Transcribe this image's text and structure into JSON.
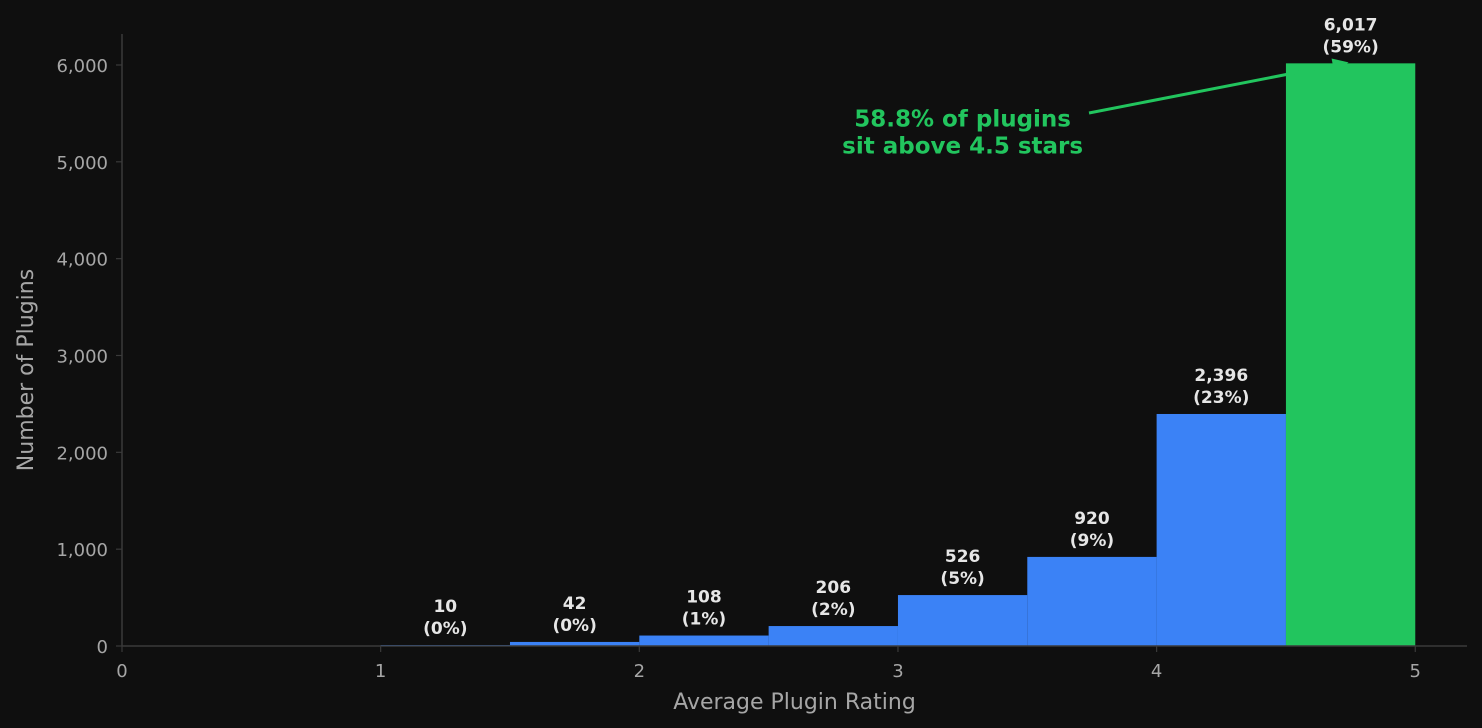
{
  "chart_data": {
    "type": "bar",
    "xlabel": "Average Plugin Rating",
    "ylabel": "Number of Plugins",
    "xlim": [
      0,
      5.2
    ],
    "ylim": [
      0,
      6320
    ],
    "xticks": [
      0,
      1,
      2,
      3,
      4,
      5
    ],
    "xtick_labels": [
      "0",
      "1",
      "2",
      "3",
      "4",
      "5"
    ],
    "yticks": [
      0,
      1000,
      2000,
      3000,
      4000,
      5000,
      6000
    ],
    "ytick_labels": [
      "0",
      "1,000",
      "2,000",
      "3,000",
      "4,000",
      "5,000",
      "6,000"
    ],
    "grid": false,
    "bins": [
      {
        "x0": 1.0,
        "x1": 1.5,
        "value": 10,
        "label": "10",
        "pct_label": "(0%)",
        "color": "#3b82f6"
      },
      {
        "x0": 1.5,
        "x1": 2.0,
        "value": 42,
        "label": "42",
        "pct_label": "(0%)",
        "color": "#3b82f6"
      },
      {
        "x0": 2.0,
        "x1": 2.5,
        "value": 108,
        "label": "108",
        "pct_label": "(1%)",
        "color": "#3b82f6"
      },
      {
        "x0": 2.5,
        "x1": 3.0,
        "value": 206,
        "label": "206",
        "pct_label": "(2%)",
        "color": "#3b82f6"
      },
      {
        "x0": 3.0,
        "x1": 3.5,
        "value": 526,
        "label": "526",
        "pct_label": "(5%)",
        "color": "#3b82f6"
      },
      {
        "x0": 3.5,
        "x1": 4.0,
        "value": 920,
        "label": "920",
        "pct_label": "(9%)",
        "color": "#3b82f6"
      },
      {
        "x0": 4.0,
        "x1": 4.5,
        "value": 2396,
        "label": "2,396",
        "pct_label": "(23%)",
        "color": "#3b82f6"
      },
      {
        "x0": 4.5,
        "x1": 5.0,
        "value": 6017,
        "label": "6,017",
        "pct_label": "(59%)",
        "color": "#22c55e"
      }
    ],
    "annotation": {
      "lines": [
        "58.8% of plugins",
        "sit above 4.5 stars"
      ],
      "color": "#22c55e",
      "text_at": [
        3.25,
        5200
      ],
      "arrow_to": [
        4.75,
        6017
      ]
    }
  },
  "colors": {
    "background": "#0f0f0f",
    "axis": "#3a3a3a",
    "tick_text": "#a6a6a6",
    "bar_text": "#e6e6e6"
  }
}
